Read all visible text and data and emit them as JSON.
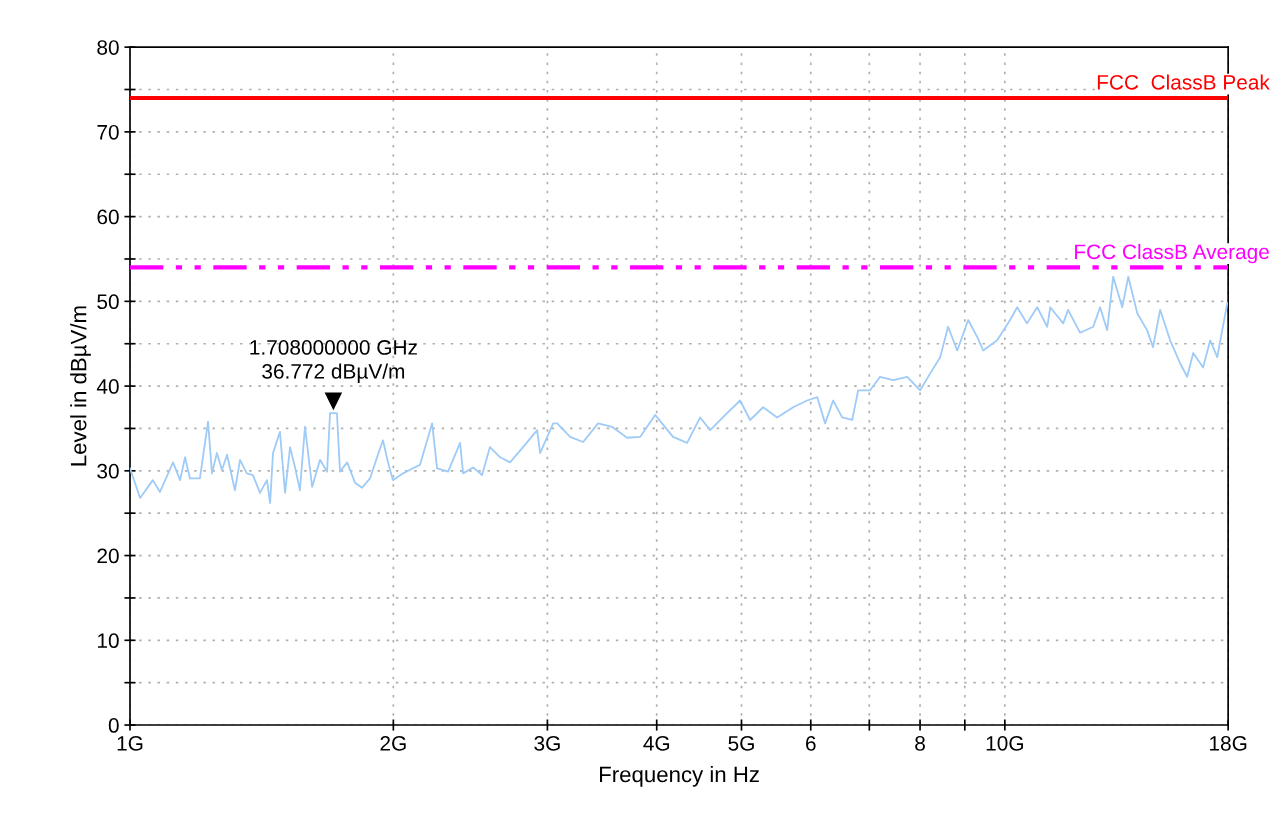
{
  "chart_data": {
    "type": "line",
    "xlabel": "Frequency in Hz",
    "ylabel": "Level in dBµV/m",
    "log": "x",
    "xlim": [
      1,
      18
    ],
    "xticks": [
      {
        "value": 1,
        "label": "1G"
      },
      {
        "value": 2,
        "label": "2G"
      },
      {
        "value": 3,
        "label": "3G"
      },
      {
        "value": 4,
        "label": "4G"
      },
      {
        "value": 5,
        "label": "5G"
      },
      6,
      {
        "value": 7,
        "label": null
      },
      8,
      {
        "value": 9,
        "label": null
      },
      {
        "value": 10,
        "label": "10G"
      },
      {
        "value": 18,
        "label": "18G"
      }
    ],
    "ylim": [
      0,
      80
    ],
    "yticks": [
      0,
      {
        "value": 5,
        "label": null
      },
      10,
      {
        "value": 15,
        "label": null
      },
      20,
      {
        "value": 25,
        "label": null
      },
      30,
      {
        "value": 35,
        "label": null
      },
      40,
      {
        "value": 45,
        "label": null
      },
      50,
      {
        "value": 55,
        "label": null
      },
      60,
      {
        "value": 65,
        "label": null
      },
      70,
      {
        "value": 75,
        "label": null
      },
      80
    ],
    "grid": true,
    "line_style": "solid",
    "series": [
      {
        "color": "#9ecbf7",
        "x": [
          1.0,
          1.027,
          1.062,
          1.082,
          1.12,
          1.141,
          1.156,
          1.171,
          1.202,
          1.228,
          1.241,
          1.257,
          1.274,
          1.291,
          1.318,
          1.336,
          1.36,
          1.382,
          1.408,
          1.434,
          1.446,
          1.457,
          1.484,
          1.504,
          1.524,
          1.544,
          1.564,
          1.585,
          1.615,
          1.649,
          1.68,
          1.693,
          1.708,
          1.724,
          1.738,
          1.771,
          1.808,
          1.842,
          1.881,
          1.916,
          1.946,
          1.972,
          1.998,
          2.052,
          2.106,
          2.145,
          2.215,
          2.244,
          2.31,
          2.384,
          2.403,
          2.467,
          2.526,
          2.579,
          2.649,
          2.719,
          2.814,
          2.92,
          2.943,
          3.046,
          3.078,
          3.185,
          3.296,
          3.428,
          3.556,
          3.7,
          3.829,
          3.983,
          4.176,
          4.333,
          4.485,
          4.604,
          4.814,
          4.982,
          5.115,
          5.293,
          5.492,
          5.729,
          5.943,
          6.102,
          6.232,
          6.364,
          6.517,
          6.691,
          6.797,
          7.015,
          7.201,
          7.453,
          7.734,
          8.003,
          8.217,
          8.436,
          8.612,
          8.823,
          9.08,
          9.298,
          9.446,
          9.799,
          10.14,
          10.33,
          10.6,
          10.89,
          11.18,
          11.27,
          11.66,
          11.81,
          12.19,
          12.62,
          12.85,
          13.09,
          13.3,
          13.62,
          13.84,
          14.17,
          14.54,
          14.77,
          15.05,
          15.45,
          15.86,
          16.16,
          16.42,
          16.85,
          17.17,
          17.49,
          17.96
        ],
        "values": [
          30.3,
          26.8,
          28.9,
          27.5,
          31.0,
          28.9,
          31.6,
          29.1,
          29.1,
          35.8,
          29.7,
          32.1,
          30.1,
          31.9,
          27.7,
          31.3,
          29.7,
          29.5,
          27.4,
          28.9,
          26.2,
          32.1,
          34.6,
          27.4,
          32.8,
          30.4,
          27.7,
          35.2,
          28.1,
          31.3,
          29.9,
          36.8,
          36.8,
          36.8,
          29.9,
          31.0,
          28.6,
          28.0,
          29.1,
          31.6,
          33.6,
          31.0,
          28.9,
          29.7,
          30.3,
          30.7,
          35.6,
          30.3,
          29.9,
          33.3,
          29.7,
          30.4,
          29.5,
          32.8,
          31.6,
          31.0,
          32.8,
          34.8,
          32.1,
          35.6,
          35.6,
          34.0,
          33.4,
          35.6,
          35.2,
          33.9,
          34.0,
          36.6,
          34.0,
          33.3,
          36.3,
          34.8,
          36.8,
          38.3,
          36.0,
          37.5,
          36.3,
          37.5,
          38.3,
          38.7,
          35.6,
          38.3,
          36.3,
          36.0,
          39.5,
          39.5,
          41.1,
          40.7,
          41.1,
          39.5,
          41.5,
          43.4,
          47.0,
          44.2,
          47.8,
          45.8,
          44.2,
          45.4,
          47.8,
          49.3,
          47.4,
          49.3,
          47.0,
          49.3,
          47.4,
          49.0,
          46.3,
          47.0,
          49.3,
          46.6,
          52.9,
          49.3,
          52.9,
          48.6,
          46.6,
          44.6,
          49.0,
          45.4,
          42.7,
          41.1,
          43.9,
          42.2,
          45.4,
          43.4,
          49.8
        ]
      }
    ],
    "ref_lines": [
      {
        "axis": "y",
        "value": 74,
        "label": "FCC  ClassB Peak",
        "color": "#ff0000",
        "line_style": "solid"
      },
      {
        "axis": "y",
        "value": 54,
        "label": "FCC ClassB Average",
        "color": "#ff00ff",
        "line_style": "dashdot"
      }
    ],
    "annotations": [
      {
        "text": "1.708000000 GHz\n36.772 dBµV/m",
        "x": 1.708,
        "y": 36.772
      }
    ]
  }
}
